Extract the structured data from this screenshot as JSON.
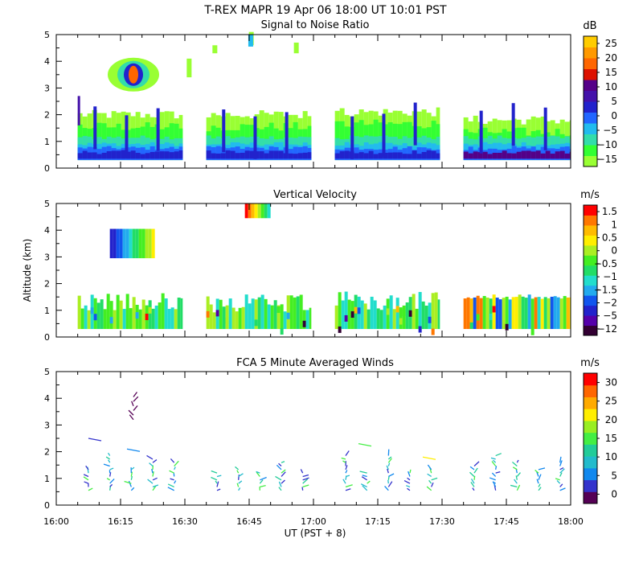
{
  "header": {
    "title": "T-REX  MAPR 19 Apr 06  18:00 UT  10:01  PST"
  },
  "xaxis": {
    "label": "UT  (PST + 8)",
    "ticks": [
      "16:00",
      "16:15",
      "16:30",
      "16:45",
      "17:00",
      "17:15",
      "17:30",
      "17:45",
      "18:00"
    ],
    "range_minutes": [
      0,
      120
    ]
  },
  "yaxis": {
    "label": "Altitude (km)",
    "range_km": [
      0,
      5
    ],
    "ticks": [
      "0",
      "1",
      "2",
      "3",
      "4",
      "5"
    ]
  },
  "colors": {
    "snr_scale": [
      "#99ff33",
      "#33ff33",
      "#33ddaa",
      "#22bbee",
      "#2266ff",
      "#2222cc",
      "#4411aa",
      "#550088",
      "#dd1100",
      "#ff6600",
      "#ff9900",
      "#ffcc00"
    ],
    "vel_scale": [
      "#330033",
      "#5500aa",
      "#2222cc",
      "#1155ee",
      "#22aaee",
      "#22ddcc",
      "#22dd66",
      "#44ee22",
      "#aaee22",
      "#ffee00",
      "#ffbb00",
      "#ff7700",
      "#ff0000"
    ],
    "wind_scale": [
      "#550055",
      "#3333cc",
      "#1188ee",
      "#22bbcc",
      "#22cc99",
      "#44ee44",
      "#99ee22",
      "#ffee00",
      "#ffaa00",
      "#ff6600",
      "#ff0000"
    ]
  },
  "chart_data": [
    {
      "type": "heatmap",
      "name": "snr",
      "title": "Signal to Noise Ratio",
      "units": "dB",
      "colorbar_labels": [
        "25",
        "20",
        "15",
        "10",
        "5",
        "0",
        "−5",
        "−10",
        "−15"
      ],
      "colorbar_range": [
        -15,
        25
      ],
      "segments": [
        {
          "t0": 5,
          "t1": 29.5,
          "z0": 0.3,
          "z1": 2.0
        },
        {
          "t0": 35,
          "t1": 59.5,
          "z0": 0.3,
          "z1": 2.0
        },
        {
          "t0": 65,
          "t1": 89.5,
          "z0": 0.3,
          "z1": 2.1
        },
        {
          "t0": 95,
          "t1": 120,
          "z0": 0.3,
          "z1": 1.8
        }
      ]
    },
    {
      "type": "heatmap",
      "name": "vertical_velocity",
      "title": "Vertical Velocity",
      "units": "m/s",
      "colorbar_labels": [
        "1.5",
        "1",
        "0.5",
        "0",
        "−0.5",
        "−1",
        "−1.5",
        "−2",
        "−5",
        "−12"
      ],
      "colorbar_range": [
        -12,
        1.5
      ],
      "segments": [
        {
          "t0": 5,
          "t1": 29.5,
          "z0": 0.3,
          "z1": 1.7
        },
        {
          "t0": 35,
          "t1": 59.5,
          "z0": 0.3,
          "z1": 1.6
        },
        {
          "t0": 65,
          "t1": 89.5,
          "z0": 0.3,
          "z1": 1.7
        },
        {
          "t0": 95,
          "t1": 120,
          "z0": 0.3,
          "z1": 1.6
        }
      ]
    },
    {
      "type": "scatter",
      "name": "fca_winds",
      "title": "FCA 5 Minute Averaged Winds",
      "units": "m/s",
      "colorbar_labels": [
        "30",
        "25",
        "20",
        "15",
        "10",
        "5",
        "0"
      ],
      "colorbar_range": [
        0,
        30
      ],
      "profile_times_min": [
        7.5,
        12.5,
        17.5,
        22.5,
        27.5,
        37.5,
        42.5,
        47.5,
        52.5,
        57.5,
        67.5,
        72.5,
        77.5,
        82.5,
        87.5,
        97.5,
        102.5,
        107.5,
        112.5,
        117.5
      ],
      "profile_altitudes_km": [
        0.6,
        0.9,
        1.2,
        1.5,
        1.8
      ]
    }
  ]
}
